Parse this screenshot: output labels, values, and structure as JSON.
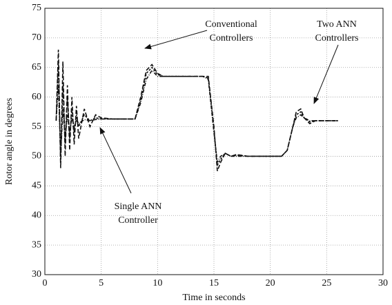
{
  "chart_data": {
    "type": "line",
    "xlabel": "Time in seconds",
    "ylabel": "Rotor angle in degrees",
    "x": [
      1,
      1.2,
      1.4,
      1.6,
      1.8,
      2,
      2.2,
      2.4,
      2.6,
      2.8,
      3,
      3.5,
      4,
      4.5,
      5,
      6,
      7,
      8,
      8.5,
      9,
      9.5,
      10,
      10.5,
      12,
      14,
      14.5,
      15,
      15.3,
      15.6,
      16,
      16.5,
      17,
      18,
      20,
      21,
      21.5,
      22,
      22.3,
      22.7,
      23,
      23.5,
      24,
      25,
      26
    ],
    "series": [
      {
        "color": "#111111",
        "values": [
          56,
          68,
          48,
          66,
          50,
          62,
          51,
          60,
          52,
          58.5,
          53,
          58,
          55,
          57,
          56.5,
          56.3,
          56.3,
          56.3,
          60,
          64.5,
          65.5,
          64,
          63.5,
          63.5,
          63.5,
          63.5,
          55,
          47.5,
          49,
          50.5,
          50,
          50.3,
          50,
          50,
          50,
          51,
          55,
          57.5,
          58,
          56.5,
          55.5,
          56,
          56,
          56
        ]
      },
      {
        "color": "#111111",
        "values": [
          56,
          62,
          50,
          58,
          53,
          57,
          54,
          56.5,
          55,
          56,
          55.5,
          56.2,
          56,
          56.2,
          56.3,
          56.3,
          56.3,
          56.3,
          59,
          63,
          64.5,
          63.5,
          63.5,
          63.5,
          63.5,
          63,
          54,
          49,
          50,
          50.5,
          50,
          50,
          50,
          50,
          50,
          51,
          55,
          56.5,
          57,
          56.5,
          56,
          56,
          56,
          56
        ]
      },
      {
        "color": "#111111",
        "values": [
          56,
          66,
          49,
          62,
          52,
          60,
          53,
          58,
          54,
          57,
          55,
          57,
          56,
          56.5,
          56.3,
          56.3,
          56.3,
          56.3,
          59.5,
          64,
          65,
          63.8,
          63.5,
          63.5,
          63.5,
          63.2,
          54.5,
          48.5,
          49.5,
          50.5,
          50,
          50.2,
          50,
          50,
          50,
          51,
          55,
          57,
          57.5,
          56.5,
          55.8,
          56,
          56,
          56
        ]
      }
    ],
    "annotations": [
      {
        "lines": [
          "Conventional",
          "Controllers"
        ]
      },
      {
        "lines": [
          "Two ANN",
          "Controllers"
        ]
      },
      {
        "lines": [
          "Single ANN",
          "Controller"
        ]
      }
    ],
    "xlim": [
      0,
      30
    ],
    "xticks": [
      0,
      5,
      10,
      15,
      20,
      25,
      30
    ],
    "ylim": [
      30,
      75
    ],
    "yticks": [
      30,
      35,
      40,
      45,
      50,
      55,
      60,
      65,
      70,
      75
    ],
    "grid": true
  }
}
